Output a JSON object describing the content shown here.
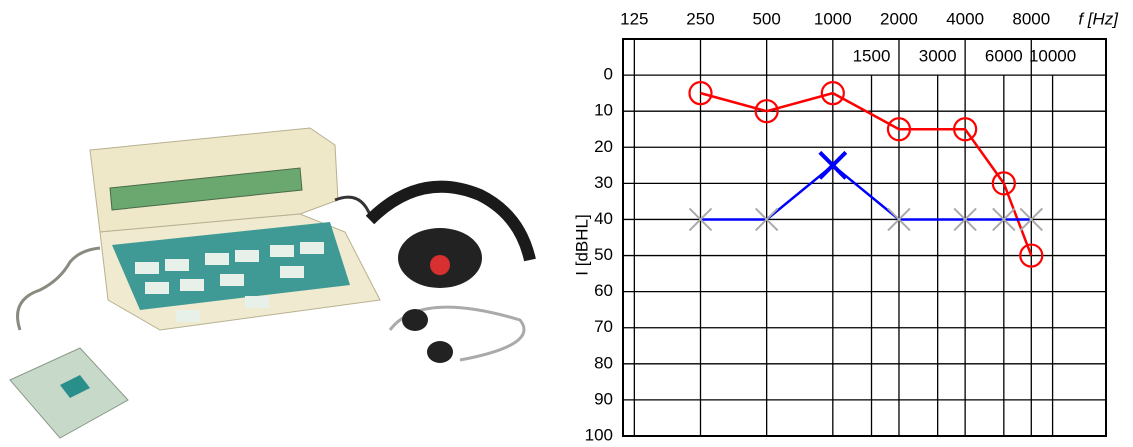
{
  "chart_data": {
    "type": "line",
    "xlabel": "f [Hz]",
    "ylabel": "I [dBHL]",
    "x": [
      250,
      500,
      1000,
      2000,
      4000,
      6000,
      8000
    ],
    "xscale": "log",
    "xlim": [
      111,
      17500
    ],
    "xticks": [
      125,
      250,
      500,
      1000,
      2000,
      4000,
      8000
    ],
    "xticks_minor": [
      1500,
      3000,
      6000,
      10000
    ],
    "ylim": [
      100,
      -10
    ],
    "yticks": [
      0,
      10,
      20,
      30,
      40,
      50,
      60,
      70,
      80,
      90,
      100
    ],
    "grid": true,
    "series": [
      {
        "color": "#ff0000",
        "marker": "circle",
        "values": [
          5,
          10,
          5,
          15,
          15,
          30,
          50
        ]
      },
      {
        "color": "#0000ff",
        "marker": "cross",
        "marker_colors": [
          "#aaaaaa",
          "#aaaaaa",
          "#0000ff",
          "#aaaaaa",
          "#aaaaaa",
          "#aaaaaa",
          "#aaaaaa"
        ],
        "values": [
          40,
          40,
          25,
          40,
          40,
          40,
          40
        ]
      }
    ]
  }
}
